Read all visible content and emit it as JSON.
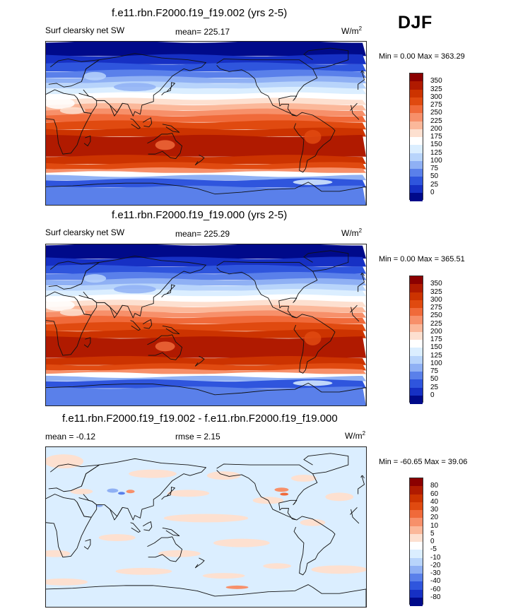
{
  "season": "DJF",
  "units_base": "W/m",
  "units_exp": "2",
  "panels": [
    {
      "title": "f.e11.rbn.F2000.f19_f19.002 (yrs 2-5)",
      "left_label": "Surf clearsky net SW",
      "stat_label": "mean= 225.17",
      "minmax": "Min =   0.00 Max = 363.29",
      "levels": [
        "350",
        "325",
        "300",
        "275",
        "250",
        "225",
        "200",
        "175",
        "150",
        "125",
        "100",
        "75",
        "50",
        "25",
        "0"
      ],
      "colors": [
        "#8b0000",
        "#b01a00",
        "#cc3300",
        "#e04a10",
        "#f06a3a",
        "#f7906a",
        "#fbb89a",
        "#fde0d0",
        "#ffffff",
        "#dbeeff",
        "#b8d4fb",
        "#8fb0f4",
        "#5a80ea",
        "#2f55dd",
        "#1630c4",
        "#000a8a"
      ],
      "field": "sw"
    },
    {
      "title": "f.e11.rbn.F2000.f19_f19.000 (yrs 2-5)",
      "left_label": "Surf clearsky net SW",
      "stat_label": "mean= 225.29",
      "minmax": "Min =   0.00 Max = 365.51",
      "levels": [
        "350",
        "325",
        "300",
        "275",
        "250",
        "225",
        "200",
        "175",
        "150",
        "125",
        "100",
        "75",
        "50",
        "25",
        "0"
      ],
      "colors": [
        "#8b0000",
        "#b01a00",
        "#cc3300",
        "#e04a10",
        "#f06a3a",
        "#f7906a",
        "#fbb89a",
        "#fde0d0",
        "#ffffff",
        "#dbeeff",
        "#b8d4fb",
        "#8fb0f4",
        "#5a80ea",
        "#2f55dd",
        "#1630c4",
        "#000a8a"
      ],
      "field": "sw"
    },
    {
      "title": "f.e11.rbn.F2000.f19_f19.002 - f.e11.rbn.F2000.f19_f19.000",
      "left_label": "mean =  -0.12",
      "stat_label": "rmse =   2.15",
      "minmax": "Min = -60.65 Max =  39.06",
      "levels": [
        "80",
        "60",
        "40",
        "30",
        "20",
        "10",
        "5",
        "0",
        "-5",
        "-10",
        "-20",
        "-30",
        "-40",
        "-60",
        "-80"
      ],
      "colors": [
        "#8b0000",
        "#b01a00",
        "#cc3300",
        "#e04a10",
        "#f06a3a",
        "#f7906a",
        "#fbb89a",
        "#fde0d0",
        "#ffffff",
        "#dbeeff",
        "#b8d4fb",
        "#8fb0f4",
        "#5a80ea",
        "#2f55dd",
        "#1630c4",
        "#000a8a"
      ],
      "field": "diff"
    }
  ]
}
